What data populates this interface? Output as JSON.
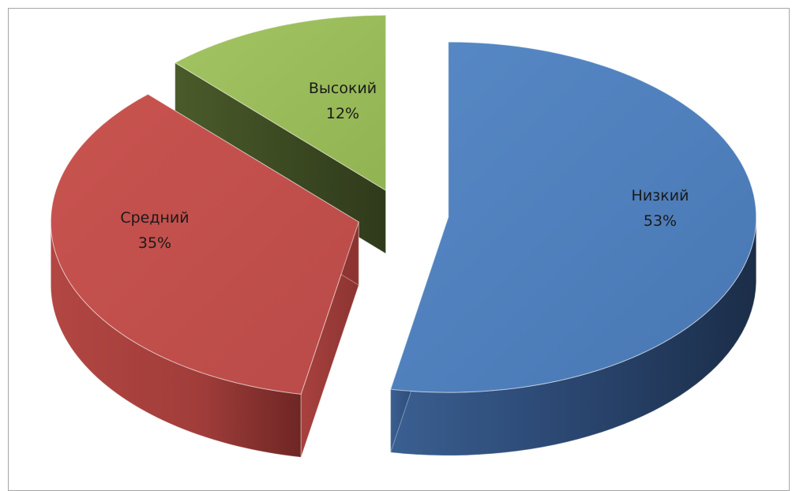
{
  "chart_data": {
    "type": "pie",
    "variant": "3d-exploded",
    "title": "",
    "legend": "none",
    "slices": [
      {
        "label": "Низкий",
        "value": 53,
        "value_label": "53%",
        "color": "#4f81bd",
        "side_color": "#1f3556"
      },
      {
        "label": "Средний",
        "value": 35,
        "value_label": "35%",
        "color": "#c0504d",
        "side_color": "#7a2725"
      },
      {
        "label": "Высокий",
        "value": 12,
        "value_label": "12%",
        "color": "#9bbb59",
        "side_color": "#3b4a22"
      }
    ]
  }
}
